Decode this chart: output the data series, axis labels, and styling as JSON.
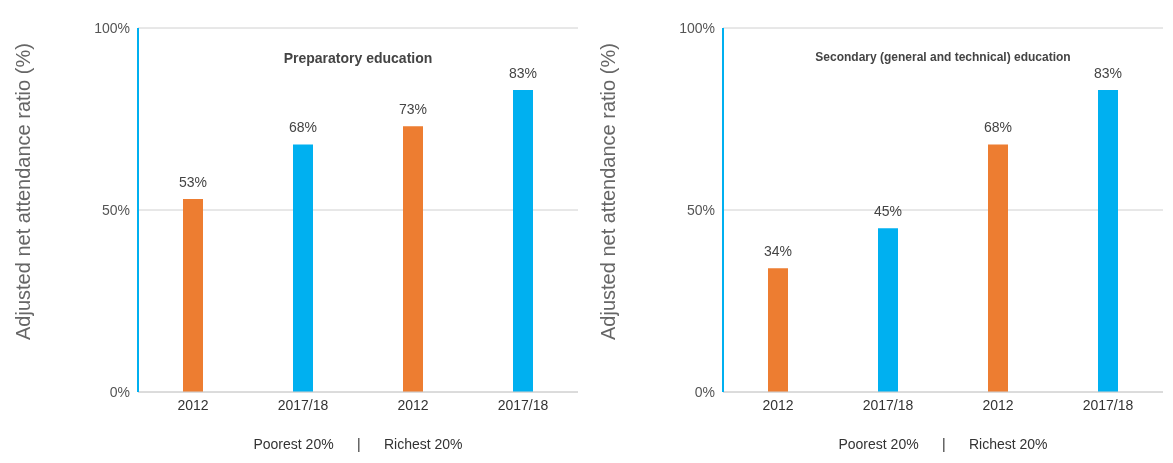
{
  "chart_data": [
    {
      "type": "bar",
      "title": "Preparatory education",
      "ylabel": "Adjusted net attendance ratio (%)",
      "xlabel": "Poorest 20%      |      Richest 20%",
      "categories": [
        "2012",
        "2017/18",
        "2012",
        "2017/18"
      ],
      "values": [
        53,
        68,
        73,
        83
      ],
      "colors": [
        "#ed7d31",
        "#00b0f0",
        "#ed7d31",
        "#00b0f0"
      ],
      "value_labels": [
        "53%",
        "68%",
        "73%",
        "83%"
      ],
      "ylim": [
        0,
        100
      ],
      "yticks": [
        {
          "value": 0,
          "label": "0%"
        },
        {
          "value": 50,
          "label": "50%"
        },
        {
          "value": 100,
          "label": "100%"
        }
      ],
      "grid": "y"
    },
    {
      "type": "bar",
      "title": "Secondary (general and technical) education",
      "ylabel": "Adjusted net attendance ratio (%)",
      "xlabel": "Poorest 20%      |      Richest 20%",
      "categories": [
        "2012",
        "2017/18",
        "2012",
        "2017/18"
      ],
      "values": [
        34,
        45,
        68,
        83
      ],
      "colors": [
        "#ed7d31",
        "#00b0f0",
        "#ed7d31",
        "#00b0f0"
      ],
      "value_labels": [
        "34%",
        "45%",
        "68%",
        "83%"
      ],
      "ylim": [
        0,
        100
      ],
      "yticks": [
        {
          "value": 0,
          "label": "0%"
        },
        {
          "value": 50,
          "label": "50%"
        },
        {
          "value": 100,
          "label": "100%"
        }
      ],
      "grid": "y"
    }
  ]
}
